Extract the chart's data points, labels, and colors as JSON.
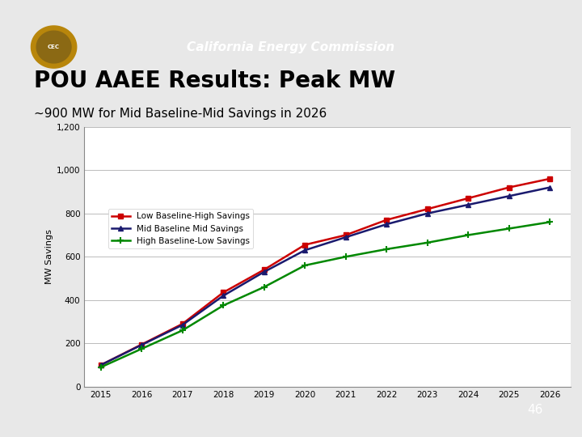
{
  "title_header": "California Energy Commission",
  "title_main": "POU AAEE Results: Peak MW",
  "title_sub": "~900 MW for Mid Baseline-Mid Savings in 2026",
  "ylabel": "MW Savings",
  "years": [
    2015,
    2016,
    2017,
    2018,
    2019,
    2020,
    2021,
    2022,
    2023,
    2024,
    2025,
    2026
  ],
  "low_baseline_high_savings": [
    100,
    195,
    290,
    435,
    540,
    655,
    700,
    770,
    820,
    870,
    920,
    960
  ],
  "mid_baseline_mid_savings": [
    100,
    193,
    285,
    420,
    530,
    630,
    690,
    750,
    800,
    840,
    880,
    920
  ],
  "high_baseline_low_savings": [
    90,
    175,
    260,
    375,
    460,
    560,
    600,
    635,
    665,
    700,
    730,
    760
  ],
  "color_low": "#CC0000",
  "color_mid": "#1a1a6e",
  "color_high": "#008800",
  "legend_labels": [
    "Low Baseline-High Savings",
    "Mid Baseline Mid Savings",
    "High Baseline-Low Savings"
  ],
  "ylim": [
    0,
    1200
  ],
  "yticks": [
    0,
    200,
    400,
    600,
    800,
    1000,
    1200
  ],
  "page_number": "46",
  "slide_bg": "#e8e8e8",
  "header_bg": "#3a5080",
  "header_text_color": "#ffffff",
  "footer_bg": "#1e3060",
  "content_bg": "#ffffff",
  "border_color": "#888888"
}
